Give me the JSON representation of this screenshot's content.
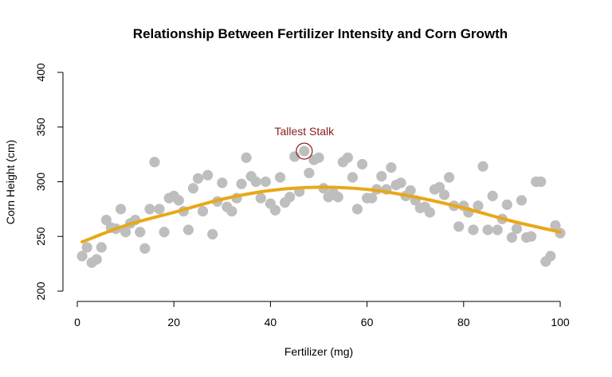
{
  "chart_data": {
    "type": "scatter",
    "title": "Relationship Between Fertilizer Intensity and Corn Growth",
    "xlabel": "Fertilizer (mg)",
    "ylabel": "Corn Height (cm)",
    "xlim": [
      0,
      100
    ],
    "ylim": [
      200,
      400
    ],
    "x_ticks": [
      0,
      20,
      40,
      60,
      80,
      100
    ],
    "y_ticks": [
      200,
      250,
      300,
      350,
      400
    ],
    "grid": false,
    "colors": {
      "points": "#bebebe",
      "trend": "#e8a817",
      "annotation": "#8b1a1a"
    },
    "series": [
      {
        "type": "scatter",
        "x": [
          1,
          2,
          3,
          4,
          5,
          6,
          7,
          8,
          9,
          10,
          11,
          12,
          13,
          14,
          15,
          16,
          17,
          18,
          19,
          20,
          21,
          22,
          23,
          24,
          25,
          26,
          27,
          28,
          29,
          30,
          31,
          32,
          33,
          34,
          35,
          36,
          37,
          38,
          39,
          40,
          41,
          42,
          43,
          44,
          45,
          46,
          47,
          48,
          49,
          50,
          51,
          52,
          53,
          54,
          55,
          56,
          57,
          58,
          59,
          60,
          61,
          62,
          63,
          64,
          65,
          66,
          67,
          68,
          69,
          70,
          71,
          72,
          73,
          74,
          75,
          76,
          77,
          78,
          79,
          80,
          81,
          82,
          83,
          84,
          85,
          86,
          87,
          88,
          89,
          90,
          91,
          92,
          93,
          94,
          95,
          96,
          97,
          98,
          99,
          100
        ],
        "y": [
          232,
          240,
          226,
          229,
          240,
          265,
          258,
          257,
          275,
          254,
          262,
          265,
          254,
          239,
          275,
          318,
          275,
          254,
          285,
          287,
          283,
          273,
          256,
          294,
          303,
          273,
          306,
          252,
          282,
          299,
          277,
          273,
          285,
          298,
          322,
          305,
          300,
          285,
          300,
          280,
          274,
          304,
          281,
          286,
          323,
          291,
          328,
          308,
          320,
          322,
          294,
          286,
          290,
          286,
          318,
          322,
          304,
          275,
          316,
          285,
          285,
          293,
          305,
          293,
          313,
          297,
          299,
          287,
          292,
          283,
          276,
          277,
          272,
          293,
          295,
          288,
          304,
          278,
          259,
          278,
          272,
          256,
          278,
          314,
          256,
          287,
          256,
          266,
          279,
          249,
          257,
          283,
          249,
          250,
          300,
          300,
          227,
          232,
          260,
          253
        ]
      },
      {
        "type": "line",
        "x": [
          1,
          10,
          20,
          30,
          40,
          50,
          60,
          70,
          80,
          90,
          100
        ],
        "y": [
          245,
          260,
          272,
          284,
          292,
          295,
          293,
          286,
          276,
          264,
          254
        ]
      }
    ],
    "annotations": [
      {
        "text": "Tallest Stalk",
        "x": 47,
        "y": 328
      }
    ]
  }
}
